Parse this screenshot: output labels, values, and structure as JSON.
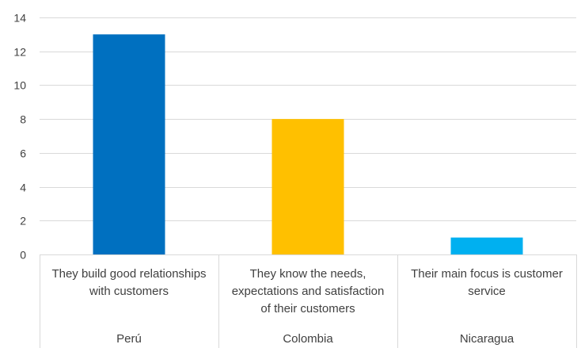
{
  "chart_data": {
    "type": "bar",
    "categories": [
      [
        "They build good relationships",
        "with customers"
      ],
      [
        "They know the needs,",
        "expectations and satisfaction",
        "of their customers"
      ],
      [
        "Their main focus is customer",
        "service"
      ]
    ],
    "groups": [
      "Perú",
      "Colombia",
      "Nicaragua"
    ],
    "values": [
      13,
      8,
      1
    ],
    "colors": [
      "#0070c0",
      "#ffc000",
      "#00b0f0"
    ],
    "y_ticks": [
      "0",
      "2",
      "4",
      "6",
      "8",
      "10",
      "12",
      "14"
    ],
    "ylim": [
      0,
      14
    ],
    "grid": true,
    "gridline_color": "#d9d9d9",
    "title": "",
    "xlabel": "",
    "ylabel": ""
  }
}
